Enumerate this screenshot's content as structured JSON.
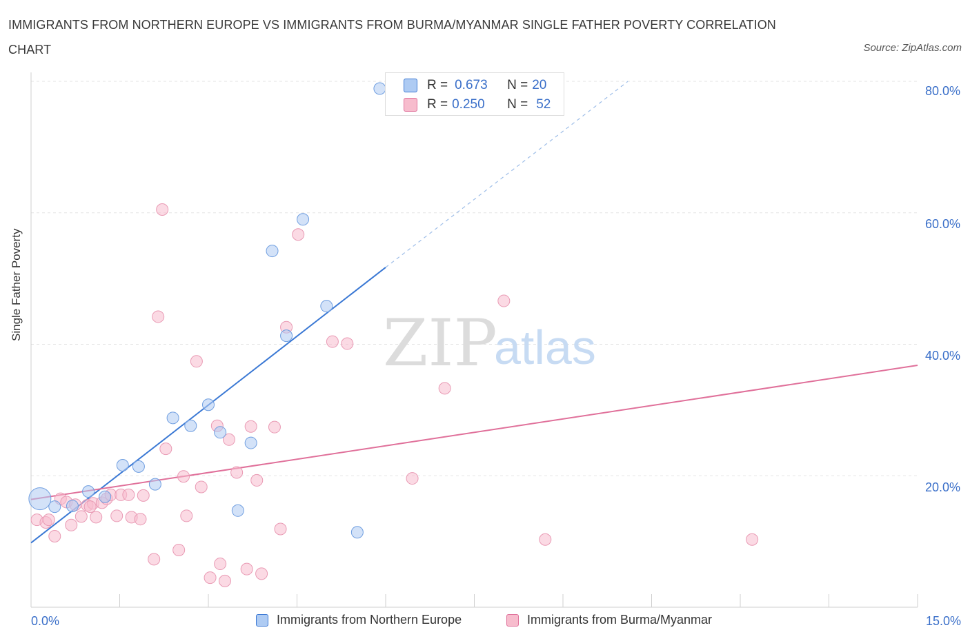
{
  "title": "IMMIGRANTS FROM NORTHERN EUROPE VS IMMIGRANTS FROM BURMA/MYANMAR SINGLE FATHER POVERTY CORRELATION CHART",
  "source": "Source: ZipAtlas.com",
  "watermark": {
    "zip": "ZIP",
    "atlas": "atlas"
  },
  "colors": {
    "blue": "#3a78d4",
    "blue_fill": "#aecbf3",
    "pink": "#e0709a",
    "pink_fill": "#f7bccd",
    "axis_text": "#3a6fc9"
  },
  "stats": [
    {
      "r_label": "R =",
      "r_value": "0.673",
      "n_label": "N =",
      "n_value": "20"
    },
    {
      "r_label": "R =",
      "r_value": "0.250",
      "n_label": "N =",
      "n_value": "52"
    }
  ],
  "legend": [
    "Immigrants from Northern Europe",
    "Immigrants from Burma/Myanmar"
  ],
  "chart_data": {
    "type": "scatter",
    "title": "IMMIGRANTS FROM NORTHERN EUROPE VS IMMIGRANTS FROM BURMA/MYANMAR SINGLE FATHER POVERTY CORRELATION CHART",
    "xlabel": "",
    "ylabel": "Single Father Poverty",
    "x_tick_labels": [
      "0.0%",
      "15.0%"
    ],
    "y_tick_labels": [
      "20.0%",
      "40.0%",
      "60.0%",
      "80.0%"
    ],
    "xlim": [
      0,
      15
    ],
    "ylim": [
      0,
      80
    ],
    "grid": true,
    "legend_position": "bottom",
    "series": [
      {
        "name": "Immigrants from Northern Europe",
        "r": 0.673,
        "n": 20,
        "trend": {
          "x0": 0,
          "y0": 9.8,
          "x1_solid": 6.0,
          "y1_solid": 51.7,
          "x1_dash": 10.1,
          "y1_dash": 80.0
        },
        "points": [
          {
            "x": 0.15,
            "y": 16.5,
            "big": true
          },
          {
            "x": 0.4,
            "y": 15.3
          },
          {
            "x": 0.7,
            "y": 15.4
          },
          {
            "x": 0.97,
            "y": 17.6
          },
          {
            "x": 1.25,
            "y": 16.8
          },
          {
            "x": 1.55,
            "y": 21.6
          },
          {
            "x": 1.82,
            "y": 21.4
          },
          {
            "x": 2.1,
            "y": 18.7
          },
          {
            "x": 2.4,
            "y": 28.8
          },
          {
            "x": 2.7,
            "y": 27.6
          },
          {
            "x": 3.0,
            "y": 30.8
          },
          {
            "x": 3.2,
            "y": 26.6
          },
          {
            "x": 3.5,
            "y": 14.7
          },
          {
            "x": 3.72,
            "y": 25.0
          },
          {
            "x": 4.08,
            "y": 54.2
          },
          {
            "x": 4.32,
            "y": 41.3
          },
          {
            "x": 4.6,
            "y": 59.0
          },
          {
            "x": 5.0,
            "y": 45.8
          },
          {
            "x": 5.52,
            "y": 11.4
          },
          {
            "x": 5.9,
            "y": 78.9
          }
        ]
      },
      {
        "name": "Immigrants from Burma/Myanmar",
        "r": 0.25,
        "n": 52,
        "trend": {
          "x0": 0,
          "y0": 16.4,
          "x1": 15,
          "y1": 36.8
        },
        "points": [
          {
            "x": 0.1,
            "y": 13.3
          },
          {
            "x": 0.25,
            "y": 12.9
          },
          {
            "x": 0.4,
            "y": 10.8
          },
          {
            "x": 0.5,
            "y": 16.5
          },
          {
            "x": 0.6,
            "y": 16.0
          },
          {
            "x": 0.68,
            "y": 12.5
          },
          {
            "x": 0.75,
            "y": 15.6
          },
          {
            "x": 0.85,
            "y": 13.8
          },
          {
            "x": 0.95,
            "y": 15.5
          },
          {
            "x": 1.05,
            "y": 15.8
          },
          {
            "x": 1.1,
            "y": 13.7
          },
          {
            "x": 1.2,
            "y": 15.9
          },
          {
            "x": 1.28,
            "y": 16.5
          },
          {
            "x": 1.35,
            "y": 17.1
          },
          {
            "x": 1.45,
            "y": 13.9
          },
          {
            "x": 1.52,
            "y": 17.1
          },
          {
            "x": 1.65,
            "y": 17.1
          },
          {
            "x": 1.7,
            "y": 13.7
          },
          {
            "x": 1.85,
            "y": 13.4
          },
          {
            "x": 1.9,
            "y": 17.0
          },
          {
            "x": 2.08,
            "y": 7.3
          },
          {
            "x": 2.15,
            "y": 44.2
          },
          {
            "x": 2.22,
            "y": 60.5
          },
          {
            "x": 2.28,
            "y": 24.1
          },
          {
            "x": 2.5,
            "y": 8.7
          },
          {
            "x": 2.58,
            "y": 19.9
          },
          {
            "x": 2.63,
            "y": 13.9
          },
          {
            "x": 2.8,
            "y": 37.4
          },
          {
            "x": 2.88,
            "y": 18.3
          },
          {
            "x": 3.03,
            "y": 4.5
          },
          {
            "x": 3.15,
            "y": 27.6
          },
          {
            "x": 3.2,
            "y": 6.6
          },
          {
            "x": 3.28,
            "y": 4.0
          },
          {
            "x": 3.35,
            "y": 25.5
          },
          {
            "x": 3.48,
            "y": 20.5
          },
          {
            "x": 3.65,
            "y": 5.8
          },
          {
            "x": 3.72,
            "y": 27.5
          },
          {
            "x": 3.82,
            "y": 19.3
          },
          {
            "x": 3.9,
            "y": 5.1
          },
          {
            "x": 4.12,
            "y": 27.4
          },
          {
            "x": 4.22,
            "y": 11.9
          },
          {
            "x": 4.32,
            "y": 42.6
          },
          {
            "x": 4.52,
            "y": 56.7
          },
          {
            "x": 5.1,
            "y": 40.4
          },
          {
            "x": 5.35,
            "y": 40.1
          },
          {
            "x": 6.45,
            "y": 19.6
          },
          {
            "x": 7.0,
            "y": 33.3
          },
          {
            "x": 8.0,
            "y": 46.6
          },
          {
            "x": 8.7,
            "y": 10.3
          },
          {
            "x": 12.2,
            "y": 10.3
          },
          {
            "x": 0.3,
            "y": 13.3
          },
          {
            "x": 1.0,
            "y": 15.3
          }
        ]
      }
    ]
  }
}
